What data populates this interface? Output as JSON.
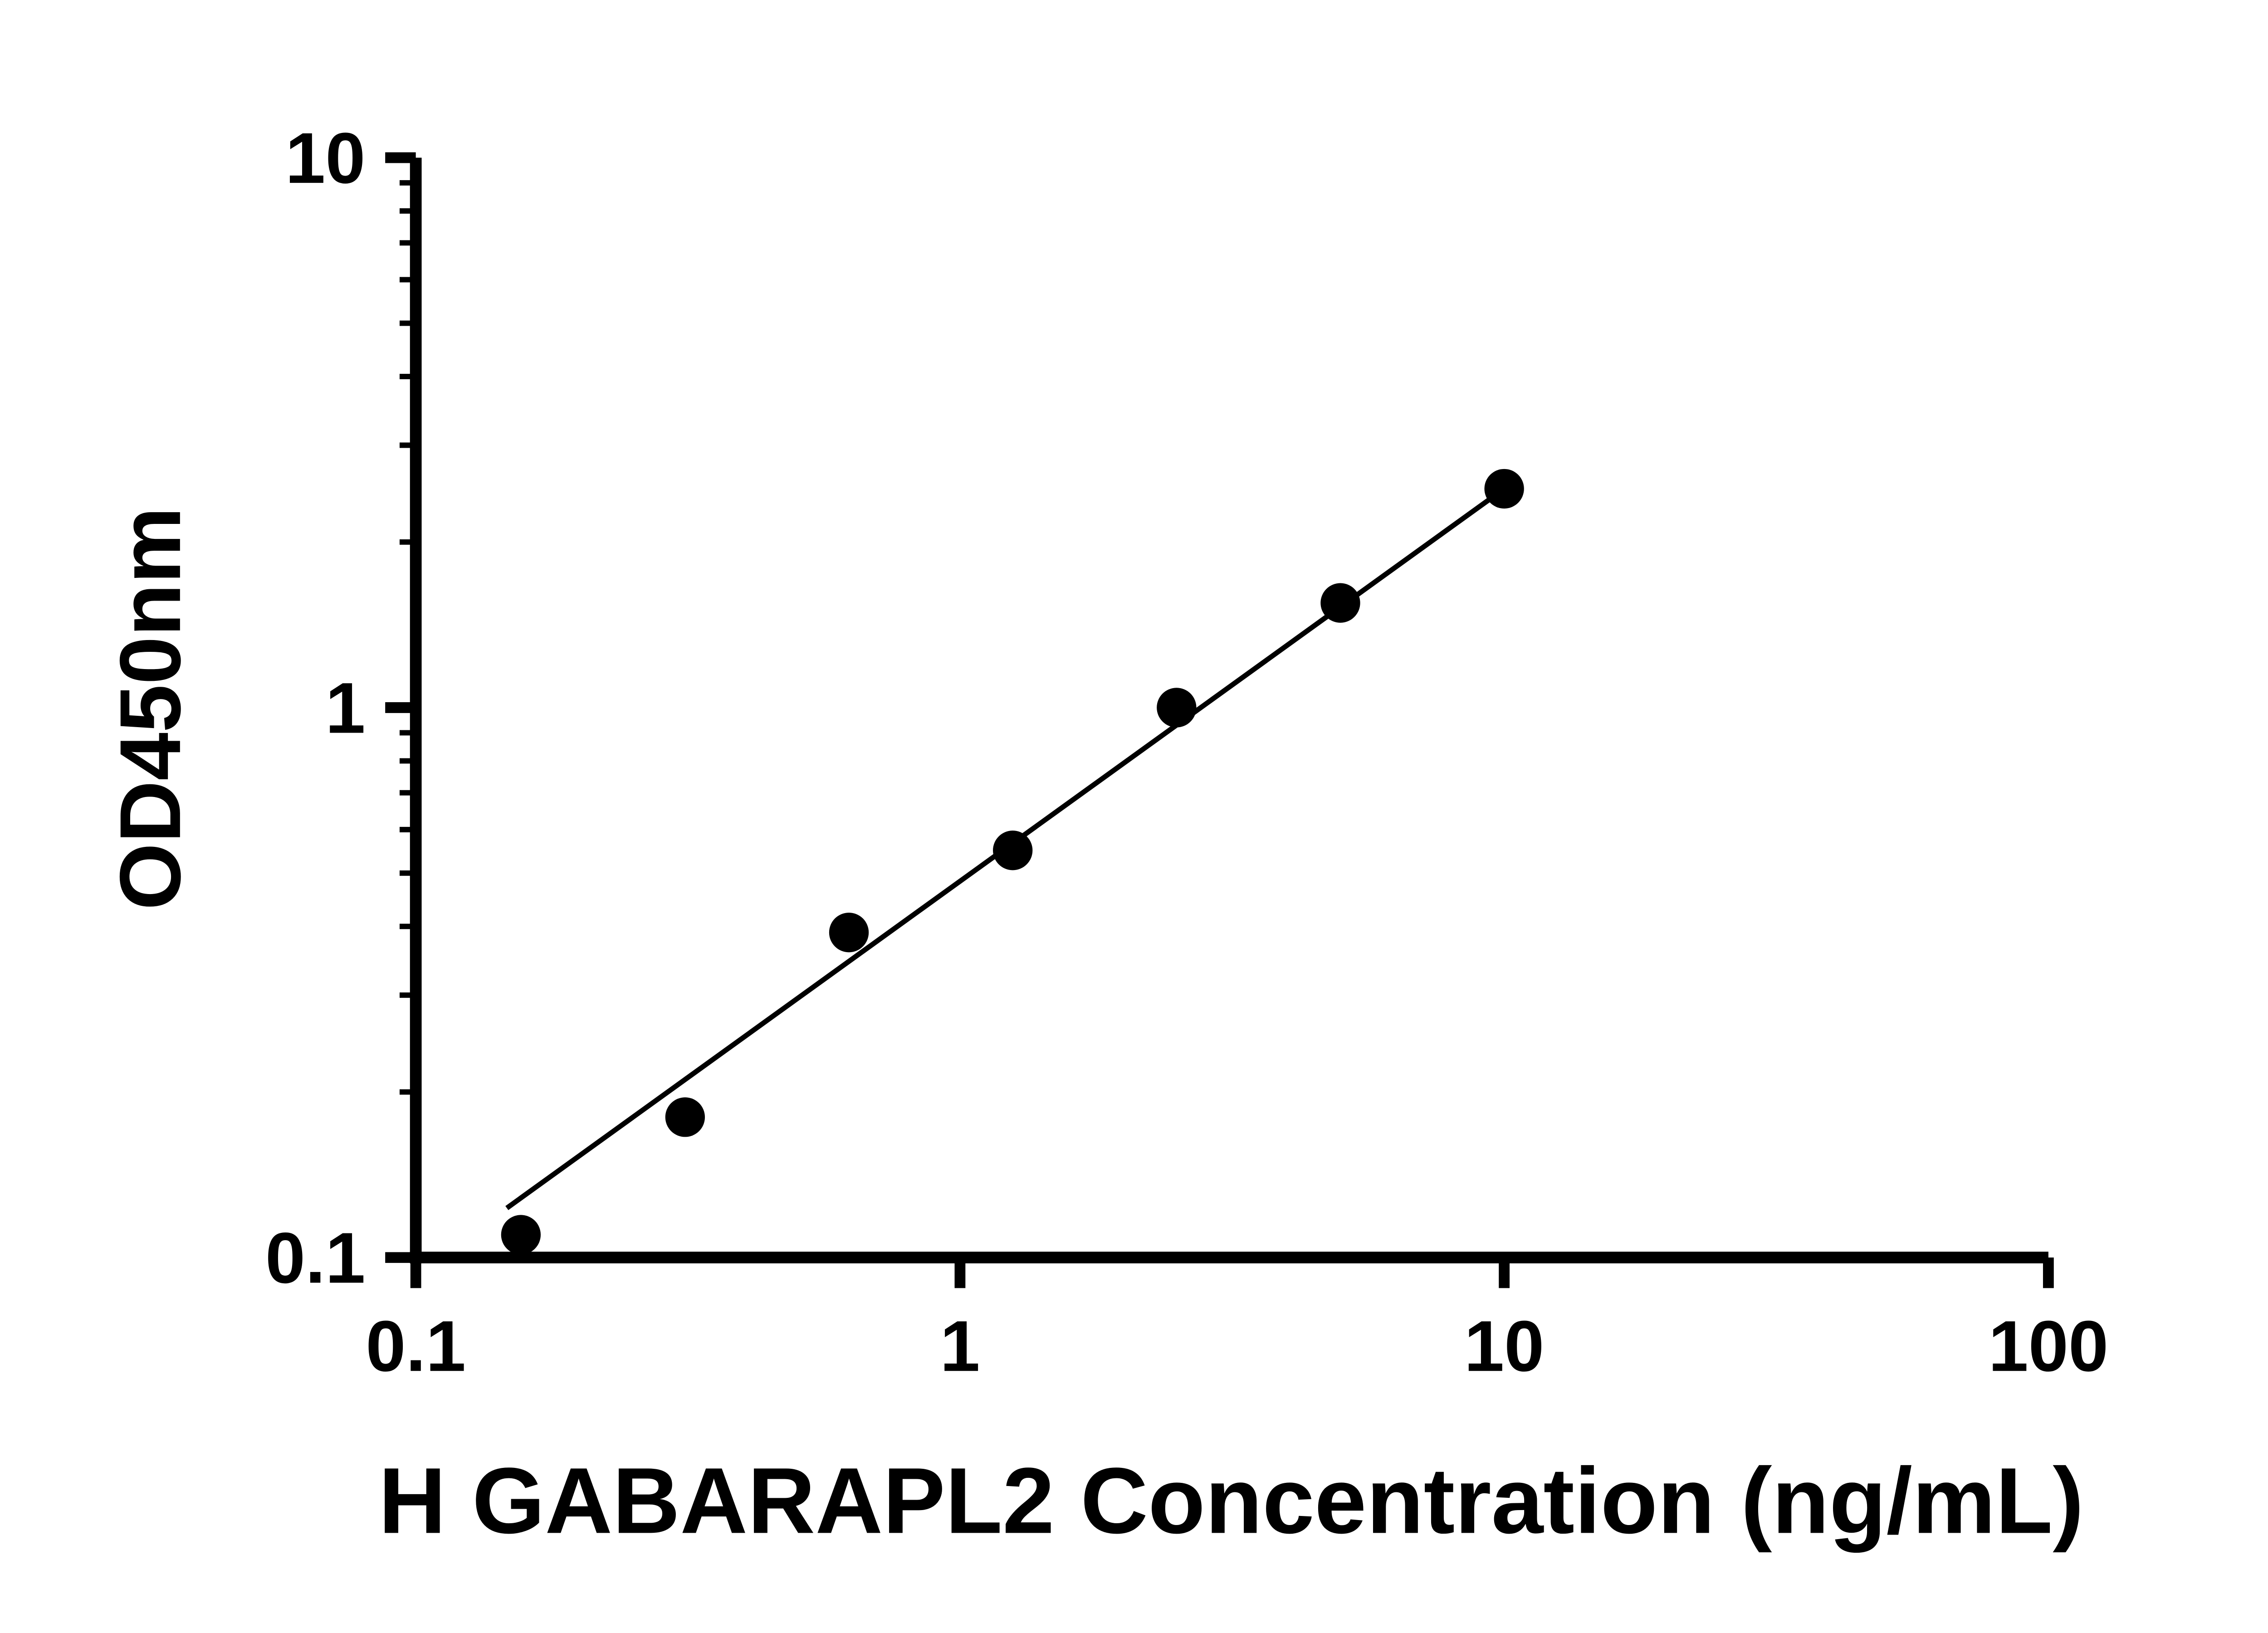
{
  "chart_data": {
    "type": "scatter",
    "title": "",
    "xlabel": "H GABARAPL2 Concentration (ng/mL)",
    "ylabel": "OD450nm",
    "xscale": "log",
    "yscale": "log",
    "xlim": [
      0.1,
      100
    ],
    "ylim": [
      0.1,
      10
    ],
    "x_ticks": [
      0.1,
      1,
      10,
      100
    ],
    "x_tick_labels": [
      "0.1",
      "1",
      "10",
      "100"
    ],
    "y_ticks": [
      0.1,
      1,
      10
    ],
    "y_tick_labels": [
      "0.1",
      "1",
      "10"
    ],
    "y_minor_ticks": true,
    "grid": false,
    "legend": false,
    "axis_color": "#000000",
    "marker_color": "#000000",
    "line_color": "#000000",
    "points": [
      {
        "x": 0.156,
        "y": 0.11
      },
      {
        "x": 0.3125,
        "y": 0.18
      },
      {
        "x": 0.625,
        "y": 0.39
      },
      {
        "x": 1.25,
        "y": 0.55
      },
      {
        "x": 2.5,
        "y": 1.0
      },
      {
        "x": 5.0,
        "y": 1.55
      },
      {
        "x": 10.0,
        "y": 2.5
      }
    ],
    "trendline": {
      "x1": 0.147,
      "y1": 0.123,
      "x2": 10.0,
      "y2": 2.5
    }
  }
}
